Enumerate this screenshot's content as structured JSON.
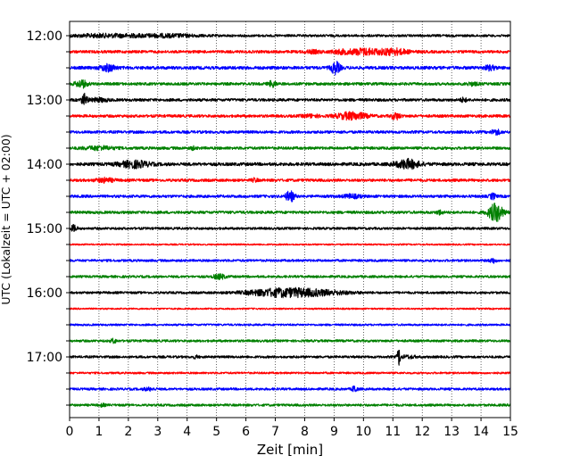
{
  "chart_data": {
    "type": "line",
    "title": "",
    "xlabel": "Zeit  [min]",
    "ylabel": "UTC (Lokalzeit = UTC + 02:00)",
    "xlim": [
      0,
      15
    ],
    "x_ticks": [
      "0",
      "1",
      "2",
      "3",
      "4",
      "5",
      "6",
      "7",
      "8",
      "9",
      "10",
      "11",
      "12",
      "13",
      "14",
      "15"
    ],
    "y_tick_labels": [
      "12:00",
      "13:00",
      "14:00",
      "15:00",
      "16:00",
      "17:00"
    ],
    "trace_interval_min": 15,
    "grid": "vertical dotted",
    "colors": [
      "#000000",
      "#ff0000",
      "#0000ff",
      "#008000"
    ],
    "series": [
      {
        "start": "12:00",
        "color": "#000000",
        "noise": 0.3,
        "events": [
          [
            1.3,
            1.4,
            0.35
          ],
          [
            3.4,
            1.0,
            0.3
          ]
        ]
      },
      {
        "start": "12:15",
        "color": "#ff0000",
        "noise": 0.35,
        "events": [
          [
            10.0,
            0.5,
            0.75
          ],
          [
            11.0,
            0.5,
            0.75
          ],
          [
            9.2,
            0.3,
            0.4
          ],
          [
            8.3,
            0.3,
            0.3
          ]
        ]
      },
      {
        "start": "12:30",
        "color": "#0000ff",
        "noise": 0.4,
        "events": [
          [
            1.3,
            0.25,
            0.8
          ],
          [
            9.05,
            0.15,
            1.5
          ],
          [
            14.3,
            0.2,
            0.5
          ]
        ]
      },
      {
        "start": "12:45",
        "color": "#008000",
        "noise": 0.35,
        "events": [
          [
            0.4,
            0.2,
            0.9
          ],
          [
            6.9,
            0.12,
            0.8
          ],
          [
            13.7,
            0.2,
            0.3
          ]
        ]
      },
      {
        "start": "13:00",
        "color": "#000000",
        "noise": 0.35,
        "events": [
          [
            0.5,
            0.1,
            1.4
          ],
          [
            1.0,
            0.3,
            0.4
          ],
          [
            13.4,
            0.1,
            0.5
          ]
        ]
      },
      {
        "start": "13:15",
        "color": "#ff0000",
        "noise": 0.35,
        "events": [
          [
            9.6,
            0.5,
            0.9
          ],
          [
            11.1,
            0.15,
            0.8
          ],
          [
            8.2,
            0.3,
            0.3
          ]
        ]
      },
      {
        "start": "13:30",
        "color": "#0000ff",
        "noise": 0.35,
        "events": [
          [
            14.5,
            0.15,
            0.6
          ]
        ]
      },
      {
        "start": "13:45",
        "color": "#008000",
        "noise": 0.35,
        "events": [
          [
            1.0,
            0.5,
            0.4
          ],
          [
            4.2,
            0.1,
            0.3
          ]
        ]
      },
      {
        "start": "14:00",
        "color": "#000000",
        "noise": 0.4,
        "events": [
          [
            2.2,
            0.5,
            0.8
          ],
          [
            11.5,
            0.4,
            1.1
          ]
        ]
      },
      {
        "start": "14:15",
        "color": "#ff0000",
        "noise": 0.35,
        "events": [
          [
            1.2,
            0.3,
            0.5
          ],
          [
            6.3,
            0.1,
            0.4
          ]
        ]
      },
      {
        "start": "14:30",
        "color": "#0000ff",
        "noise": 0.35,
        "events": [
          [
            7.5,
            0.15,
            1.3
          ],
          [
            9.6,
            0.3,
            0.4
          ],
          [
            14.4,
            0.1,
            0.7
          ]
        ]
      },
      {
        "start": "14:45",
        "color": "#008000",
        "noise": 0.35,
        "events": [
          [
            14.5,
            0.25,
            2.2
          ],
          [
            12.6,
            0.1,
            0.5
          ]
        ]
      },
      {
        "start": "15:00",
        "color": "#000000",
        "noise": 0.3,
        "events": [
          [
            0.15,
            0.1,
            0.8
          ]
        ]
      },
      {
        "start": "15:15",
        "color": "#ff0000",
        "noise": 0.2,
        "events": []
      },
      {
        "start": "15:30",
        "color": "#0000ff",
        "noise": 0.3,
        "events": [
          [
            14.4,
            0.1,
            0.6
          ]
        ]
      },
      {
        "start": "15:45",
        "color": "#008000",
        "noise": 0.3,
        "events": [
          [
            5.1,
            0.2,
            0.6
          ]
        ]
      },
      {
        "start": "16:00",
        "color": "#000000",
        "noise": 0.3,
        "events": [
          [
            7.3,
            1.2,
            1.0
          ],
          [
            8.7,
            1.0,
            0.35
          ]
        ]
      },
      {
        "start": "16:15",
        "color": "#ff0000",
        "noise": 0.2,
        "events": []
      },
      {
        "start": "16:30",
        "color": "#0000ff",
        "noise": 0.25,
        "events": []
      },
      {
        "start": "16:45",
        "color": "#008000",
        "noise": 0.3,
        "events": [
          [
            1.5,
            0.1,
            0.5
          ]
        ]
      },
      {
        "start": "17:00",
        "color": "#000000",
        "noise": 0.3,
        "events": [
          [
            11.2,
            0.05,
            2.2
          ],
          [
            11.5,
            0.3,
            0.3
          ],
          [
            4.3,
            0.1,
            0.3
          ]
        ]
      },
      {
        "start": "17:15",
        "color": "#ff0000",
        "noise": 0.25,
        "events": []
      },
      {
        "start": "17:30",
        "color": "#0000ff",
        "noise": 0.3,
        "events": [
          [
            9.7,
            0.08,
            0.9
          ],
          [
            2.7,
            0.2,
            0.3
          ]
        ]
      },
      {
        "start": "17:45",
        "color": "#008000",
        "noise": 0.3,
        "events": [
          [
            1.1,
            0.1,
            0.3
          ]
        ]
      }
    ]
  }
}
